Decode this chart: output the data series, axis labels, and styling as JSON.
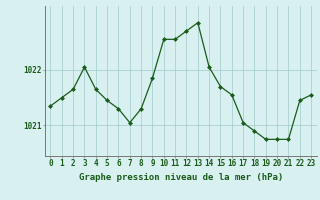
{
  "x": [
    0,
    1,
    2,
    3,
    4,
    5,
    6,
    7,
    8,
    9,
    10,
    11,
    12,
    13,
    14,
    15,
    16,
    17,
    18,
    19,
    20,
    21,
    22,
    23
  ],
  "y": [
    1021.35,
    1021.5,
    1021.65,
    1022.05,
    1021.65,
    1021.45,
    1021.3,
    1021.05,
    1021.3,
    1021.85,
    1022.55,
    1022.55,
    1022.7,
    1022.85,
    1022.05,
    1021.7,
    1021.55,
    1021.05,
    1020.9,
    1020.75,
    1020.75,
    1020.75,
    1021.45,
    1021.55
  ],
  "line_color": "#1a5c1a",
  "marker_color": "#1a5c1a",
  "bg_color": "#d8f0f0",
  "grid_color": "#a0c8c8",
  "ylabel_ticks": [
    1021,
    1022
  ],
  "xlabel_label": "Graphe pression niveau de la mer (hPa)",
  "xlabel_ticks": [
    0,
    1,
    2,
    3,
    4,
    5,
    6,
    7,
    8,
    9,
    10,
    11,
    12,
    13,
    14,
    15,
    16,
    17,
    18,
    19,
    20,
    21,
    22,
    23
  ],
  "ylim": [
    1020.45,
    1023.15
  ],
  "xlim": [
    -0.5,
    23.5
  ],
  "title_color": "#1a5c1a",
  "label_fontsize": 6.5,
  "tick_fontsize": 5.5
}
